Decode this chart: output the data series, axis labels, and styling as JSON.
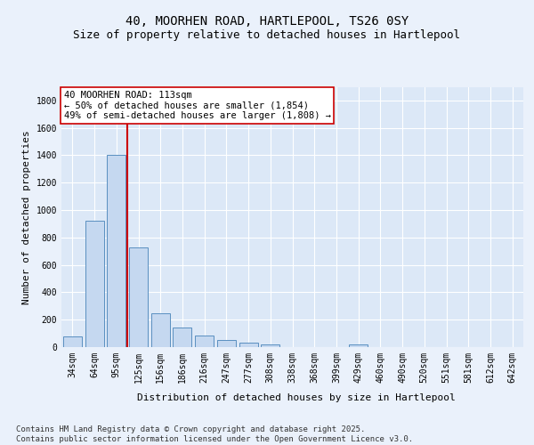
{
  "title": "40, MOORHEN ROAD, HARTLEPOOL, TS26 0SY",
  "subtitle": "Size of property relative to detached houses in Hartlepool",
  "xlabel": "Distribution of detached houses by size in Hartlepool",
  "ylabel": "Number of detached properties",
  "categories": [
    "34sqm",
    "64sqm",
    "95sqm",
    "125sqm",
    "156sqm",
    "186sqm",
    "216sqm",
    "247sqm",
    "277sqm",
    "308sqm",
    "338sqm",
    "368sqm",
    "399sqm",
    "429sqm",
    "460sqm",
    "490sqm",
    "520sqm",
    "551sqm",
    "581sqm",
    "612sqm",
    "642sqm"
  ],
  "values": [
    80,
    920,
    1400,
    730,
    245,
    140,
    85,
    55,
    30,
    20,
    0,
    0,
    0,
    20,
    0,
    0,
    0,
    0,
    0,
    0,
    0
  ],
  "bar_color": "#c5d8f0",
  "bar_edge_color": "#5a8fc0",
  "vline_x": 2.5,
  "vline_color": "#cc0000",
  "annotation_text": "40 MOORHEN ROAD: 113sqm\n← 50% of detached houses are smaller (1,854)\n49% of semi-detached houses are larger (1,808) →",
  "annotation_box_color": "#ffffff",
  "annotation_box_edge": "#cc0000",
  "ylim": [
    0,
    1900
  ],
  "yticks": [
    0,
    200,
    400,
    600,
    800,
    1000,
    1200,
    1400,
    1600,
    1800
  ],
  "bg_color": "#eaf1fb",
  "plot_bg_color": "#dce8f7",
  "footer": "Contains HM Land Registry data © Crown copyright and database right 2025.\nContains public sector information licensed under the Open Government Licence v3.0.",
  "title_fontsize": 10,
  "subtitle_fontsize": 9,
  "axis_label_fontsize": 8,
  "tick_fontsize": 7,
  "footer_fontsize": 6.5,
  "annot_fontsize": 7.5
}
